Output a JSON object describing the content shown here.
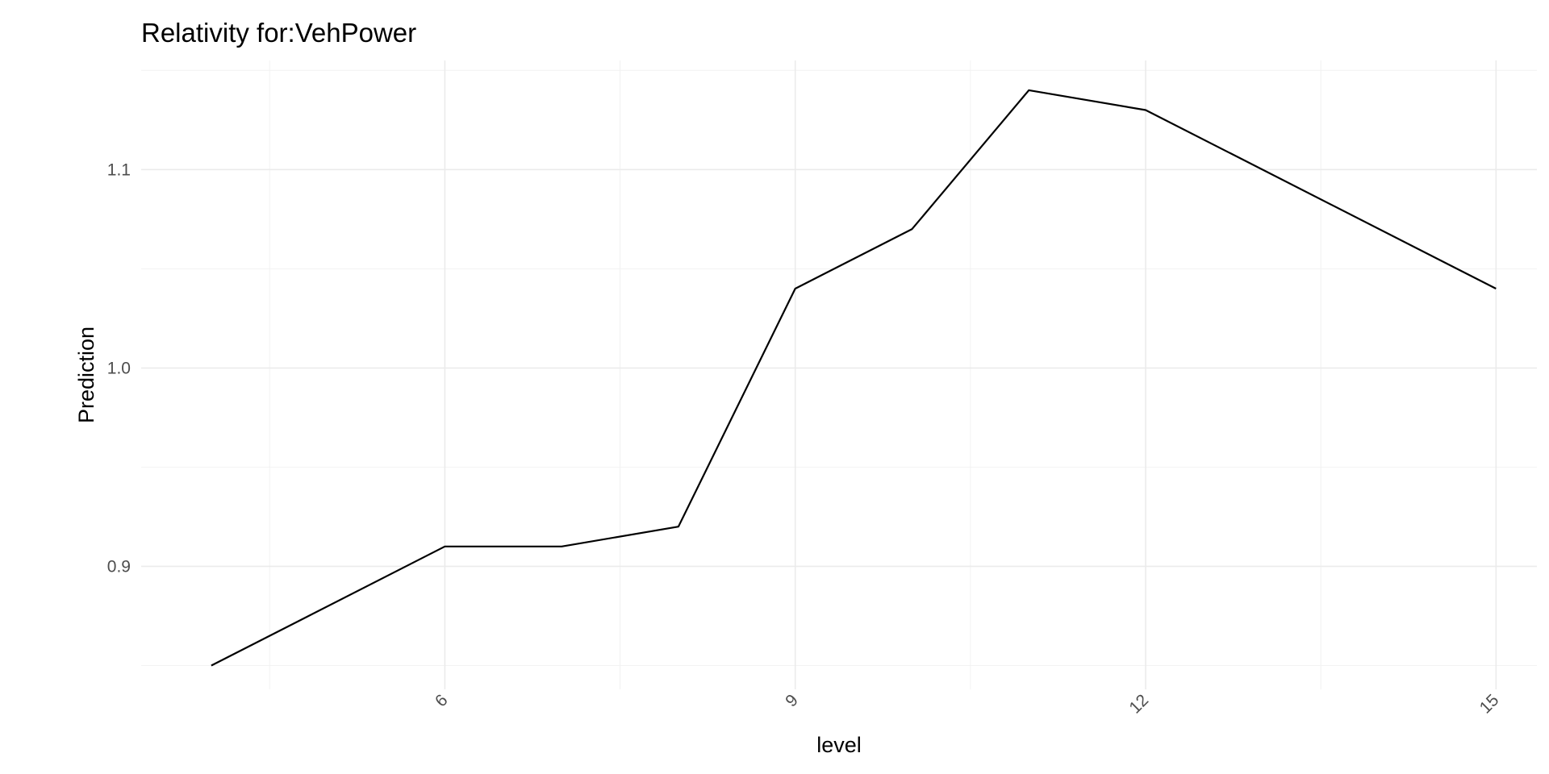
{
  "chart_data": {
    "type": "line",
    "title": "Relativity for:VehPower",
    "xlabel": "level",
    "ylabel": "Prediction",
    "x": [
      4,
      6,
      7,
      8,
      9,
      10,
      11,
      12,
      15
    ],
    "series": [
      {
        "values": [
          0.85,
          0.91,
          0.91,
          0.92,
          1.04,
          1.07,
          1.14,
          1.13,
          1.04
        ]
      }
    ],
    "xlim": [
      3.4,
      15.35
    ],
    "ylim": [
      0.838,
      1.155
    ],
    "xticks": [
      6,
      9,
      12,
      15
    ],
    "xtick_labels": [
      "6",
      "9",
      "12",
      "15"
    ],
    "xminor": [
      4.5,
      7.5,
      10.5,
      13.5
    ],
    "yticks": [
      0.9,
      1.0,
      1.1
    ],
    "ytick_labels": [
      "0.9",
      "1.0",
      "1.1"
    ],
    "yminor": [
      0.85,
      0.95,
      1.05,
      1.15
    ],
    "grid": true,
    "legend": "none",
    "line_color": "#000000"
  }
}
